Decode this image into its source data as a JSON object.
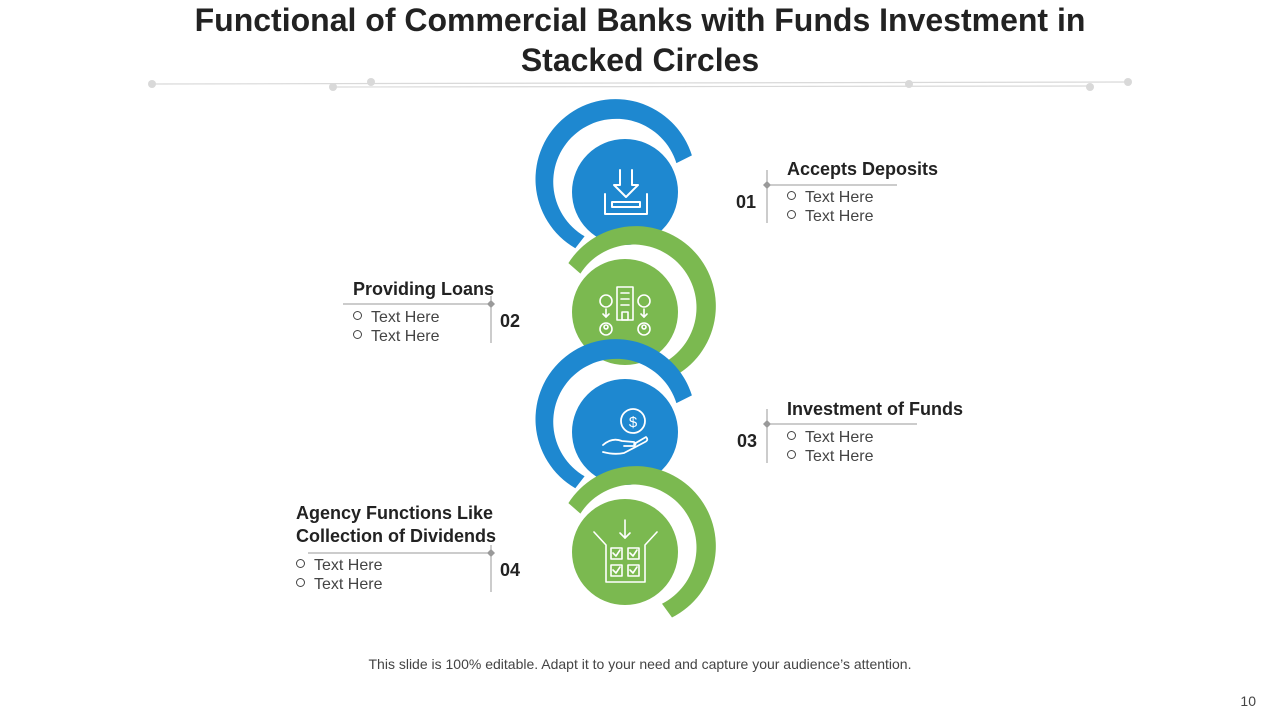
{
  "title": "Functional of Commercial Banks with Funds Investment in Stacked Circles",
  "colors": {
    "blue": "#1e88d0",
    "green": "#7bb950",
    "text": "#222222",
    "line": "#9a9a9a"
  },
  "steps": [
    {
      "number": "01",
      "title": "Accepts Deposits",
      "bullets": [
        "Text Here",
        "Text Here"
      ],
      "icon": "inbox-download-icon",
      "color": "blue"
    },
    {
      "number": "02",
      "title": "Providing Loans",
      "bullets": [
        "Text Here",
        "Text Here"
      ],
      "icon": "bank-loan-icon",
      "color": "green"
    },
    {
      "number": "03",
      "title": "Investment of Funds",
      "bullets": [
        "Text Here",
        "Text Here"
      ],
      "icon": "hand-dollar-icon",
      "color": "blue"
    },
    {
      "number": "04",
      "title": "Agency Functions Like Collection of Dividends",
      "bullets": [
        "Text Here",
        "Text Here"
      ],
      "icon": "checklist-box-icon",
      "color": "green"
    }
  ],
  "footer": "This slide is 100% editable. Adapt it to your need and capture your audience’s attention.",
  "page_number": "10"
}
